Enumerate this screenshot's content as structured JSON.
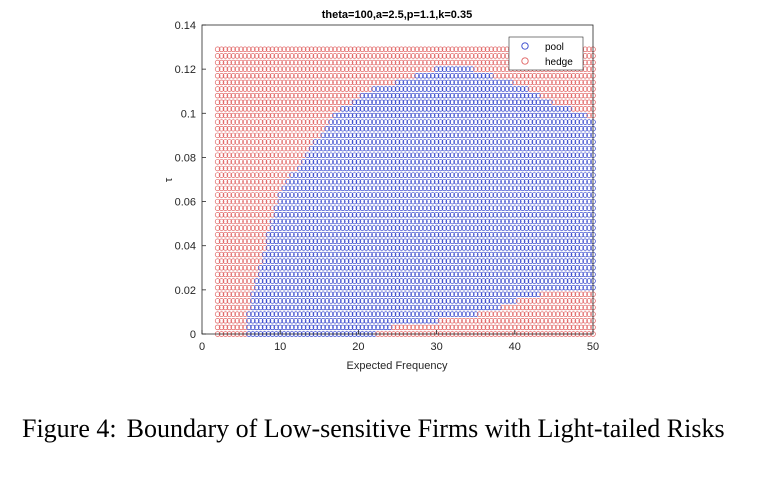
{
  "caption": {
    "label": "Figure 4:",
    "text": "Boundary of Low-sensitive Firms with Light-tailed Risks"
  },
  "chart_data": {
    "type": "scatter",
    "title": "theta=100,a=2.5,p=1.1,k=0.35",
    "xlabel": "Expected Frequency",
    "ylabel": "τ",
    "xlim": [
      0,
      50
    ],
    "ylim": [
      0,
      0.14
    ],
    "xticks": [
      "0",
      "10",
      "20",
      "30",
      "40",
      "50"
    ],
    "yticks": [
      "0",
      "0.02",
      "0.04",
      "0.06",
      "0.08",
      "0.1",
      "0.12",
      "0.14"
    ],
    "grid": false,
    "legend_placement": "top-right",
    "grid_points": {
      "x_range": [
        2,
        50
      ],
      "x_step": 0.5,
      "y_range": [
        0,
        0.129
      ],
      "y_step": 0.003
    },
    "series": [
      {
        "name": "pool",
        "color": "#3344cc",
        "marker": "circle-open",
        "region": "interior bounded by the boundary below"
      },
      {
        "name": "hedge",
        "color": "#e06060",
        "marker": "circle-open",
        "region": "complement of pool region"
      }
    ],
    "boundary": {
      "low_boundary_x": [
        2,
        5,
        6,
        15,
        22,
        24,
        30,
        37,
        40,
        45,
        50
      ],
      "low_boundary_y": [
        0,
        0,
        0,
        0,
        0,
        0.003,
        0.006,
        0.01,
        0.015,
        0.02,
        0.02
      ],
      "left_boundary_y": [
        0,
        0.01,
        0.02,
        0.03,
        0.045,
        0.06,
        0.07,
        0.08,
        0.09,
        0.1,
        0.11,
        0.12
      ],
      "left_boundary_x": [
        6,
        6,
        6.5,
        7.5,
        8.5,
        9.5,
        11,
        13,
        15,
        17,
        21,
        30
      ],
      "upper_boundary_x": [
        11,
        15,
        20,
        25,
        30,
        35,
        40,
        45,
        50
      ],
      "upper_boundary_y": [
        0.082,
        0.098,
        0.11,
        0.118,
        0.121,
        0.12,
        0.114,
        0.105,
        0.098
      ]
    }
  }
}
